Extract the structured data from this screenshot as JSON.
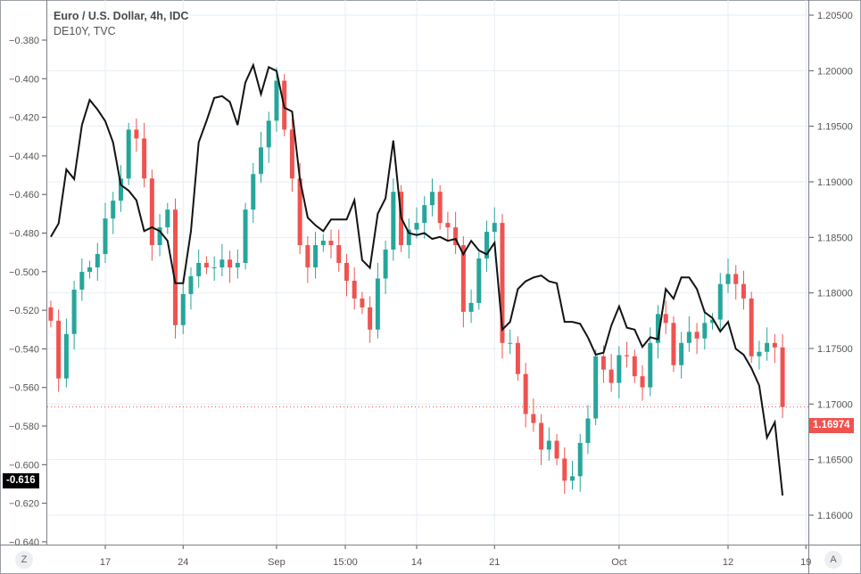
{
  "legend": {
    "main_series": "Euro / U.S. Dollar, 4h, IDC",
    "overlay_series": "DE10Y, TVC"
  },
  "buttons": {
    "left_axis_btn": "Z",
    "right_axis_btn": "A"
  },
  "colors": {
    "up": "#26a69a",
    "down": "#ef5350",
    "overlay": "#131313",
    "grid": "#e6eef4"
  },
  "chart_data": {
    "type": "candlestick+line",
    "x_label_ticks": [
      {
        "label": "17",
        "at": "08-17 00:00"
      },
      {
        "label": "24",
        "at": "08-24 00:00"
      },
      {
        "label": "Sep",
        "at": "09-01 00:00"
      },
      {
        "label": "15:00",
        "at": "09-07 10:00"
      },
      {
        "label": "14",
        "at": "09-14 00:00"
      },
      {
        "label": "21",
        "at": "09-21 00:00"
      },
      {
        "label": "Oct",
        "at": "10-01 00:00"
      },
      {
        "label": "12",
        "at": "10-12 00:00"
      },
      {
        "label": "19",
        "at": "10-19 00:00"
      }
    ],
    "x": [
      "08-11 12:00",
      "08-12 00:00",
      "08-12 12:00",
      "08-13 00:00",
      "08-13 12:00",
      "08-14 00:00",
      "08-14 12:00",
      "08-17 00:00",
      "08-17 12:00",
      "08-18 00:00",
      "08-18 12:00",
      "08-19 00:00",
      "08-19 12:00",
      "08-20 00:00",
      "08-20 12:00",
      "08-21 00:00",
      "08-21 12:00",
      "08-24 00:00",
      "08-24 12:00",
      "08-25 00:00",
      "08-25 12:00",
      "08-26 00:00",
      "08-26 12:00",
      "08-27 00:00",
      "08-27 12:00",
      "08-28 00:00",
      "08-28 12:00",
      "08-31 00:00",
      "08-31 12:00",
      "09-01 00:00",
      "09-01 12:00",
      "09-02 00:00",
      "09-02 12:00",
      "09-03 00:00",
      "09-03 12:00",
      "09-04 00:00",
      "09-04 12:00",
      "09-07 00:00",
      "09-07 12:00",
      "09-08 00:00",
      "09-08 12:00",
      "09-09 00:00",
      "09-09 12:00",
      "09-10 00:00",
      "09-10 12:00",
      "09-11 00:00",
      "09-11 12:00",
      "09-14 00:00",
      "09-14 12:00",
      "09-15 00:00",
      "09-15 12:00",
      "09-16 00:00",
      "09-16 12:00",
      "09-17 00:00",
      "09-17 12:00",
      "09-18 00:00",
      "09-18 12:00",
      "09-21 00:00",
      "09-21 12:00",
      "09-22 00:00",
      "09-22 12:00",
      "09-23 00:00",
      "09-23 12:00",
      "09-24 00:00",
      "09-24 12:00",
      "09-25 00:00",
      "09-25 12:00",
      "09-28 00:00",
      "09-28 12:00",
      "09-29 00:00",
      "09-29 12:00",
      "09-30 00:00",
      "09-30 12:00",
      "10-01 00:00",
      "10-01 12:00",
      "10-02 00:00",
      "10-02 12:00",
      "10-05 00:00",
      "10-05 12:00",
      "10-06 00:00",
      "10-06 12:00",
      "10-07 00:00",
      "10-07 12:00",
      "10-08 00:00",
      "10-08 12:00",
      "10-09 00:00",
      "10-09 12:00",
      "10-12 00:00",
      "10-12 12:00",
      "10-13 00:00",
      "10-13 12:00",
      "10-14 00:00",
      "10-14 12:00",
      "10-15 00:00",
      "10-15 12:00"
    ],
    "series": [
      {
        "name": "Euro / U.S. Dollar, 4h, IDC",
        "axis": "right",
        "kind": "candles",
        "close": [
          1.1775,
          1.1723,
          1.1763,
          1.1803,
          1.1819,
          1.1823,
          1.1835,
          1.1867,
          1.1883,
          1.1903,
          1.1947,
          1.1939,
          1.1903,
          1.1843,
          1.1859,
          1.1875,
          1.1771,
          1.1799,
          1.1815,
          1.1827,
          1.1823,
          1.1823,
          1.183,
          1.1823,
          1.1827,
          1.1875,
          1.1907,
          1.1931,
          1.1955,
          1.1991,
          1.1947,
          1.1903,
          1.1843,
          1.1823,
          1.1843,
          1.1847,
          1.1843,
          1.1827,
          1.1811,
          1.1795,
          1.1787,
          1.1767,
          1.1813,
          1.1839,
          1.1891,
          1.1843,
          1.1857,
          1.1863,
          1.1879,
          1.1891,
          1.1863,
          1.1859,
          1.1843,
          1.1783,
          1.1791,
          1.1831,
          1.1855,
          1.1863,
          1.1755,
          1.1755,
          1.1727,
          1.1691,
          1.1683,
          1.1659,
          1.1667,
          1.1651,
          1.1631,
          1.1635,
          1.1665,
          1.1687,
          1.1743,
          1.1731,
          1.1719,
          1.1744,
          1.1743,
          1.1725,
          1.1715,
          1.1755,
          1.1781,
          1.1773,
          1.1735,
          1.1755,
          1.1765,
          1.1759,
          1.1773,
          1.1776,
          1.1808,
          1.1817,
          1.1808,
          1.1795,
          1.1743,
          1.1747,
          1.1755,
          1.1751,
          1.16974
        ]
      },
      {
        "name": "DE10Y, TVC",
        "axis": "left",
        "kind": "line",
        "values": [
          -0.482,
          -0.475,
          -0.447,
          -0.452,
          -0.424,
          -0.411,
          -0.416,
          -0.422,
          -0.433,
          -0.455,
          -0.458,
          -0.463,
          -0.479,
          -0.477,
          -0.479,
          -0.484,
          -0.506,
          -0.506,
          -0.479,
          -0.433,
          -0.422,
          -0.41,
          -0.409,
          -0.412,
          -0.424,
          -0.402,
          -0.393,
          -0.408,
          -0.394,
          -0.396,
          -0.415,
          -0.417,
          -0.452,
          -0.472,
          -0.476,
          -0.479,
          -0.473,
          -0.473,
          -0.473,
          -0.463,
          -0.494,
          -0.498,
          -0.47,
          -0.462,
          -0.432,
          -0.472,
          -0.48,
          -0.481,
          -0.48,
          -0.483,
          -0.482,
          -0.484,
          -0.483,
          -0.491,
          -0.484,
          -0.489,
          -0.491,
          -0.485,
          -0.53,
          -0.526,
          -0.509,
          -0.505,
          -0.503,
          -0.502,
          -0.505,
          -0.506,
          -0.526,
          -0.526,
          -0.527,
          -0.534,
          -0.543,
          -0.542,
          -0.528,
          -0.518,
          -0.529,
          -0.53,
          -0.539,
          -0.534,
          -0.535,
          -0.509,
          -0.514,
          -0.503,
          -0.503,
          -0.509,
          -0.521,
          -0.524,
          -0.531,
          -0.526,
          -0.54,
          -0.543,
          -0.55,
          -0.559,
          -0.586,
          -0.578,
          -0.616
        ]
      }
    ],
    "left_axis": {
      "ticks": [
        "-0.380",
        "-0.400",
        "-0.420",
        "-0.440",
        "-0.460",
        "-0.480",
        "-0.500",
        "-0.520",
        "-0.540",
        "-0.560",
        "-0.580",
        "-0.600",
        "-0.620",
        "-0.640"
      ],
      "range": [
        -0.64,
        -0.38
      ],
      "last_value_label": "-0.616"
    },
    "right_axis": {
      "ticks": [
        "1.20500",
        "1.20000",
        "1.19500",
        "1.19000",
        "1.18500",
        "1.18000",
        "1.17500",
        "1.17000",
        "1.16500",
        "1.16000"
      ],
      "range": [
        1.16,
        1.205
      ],
      "last_value_label": "1.16974"
    },
    "grid": true
  }
}
